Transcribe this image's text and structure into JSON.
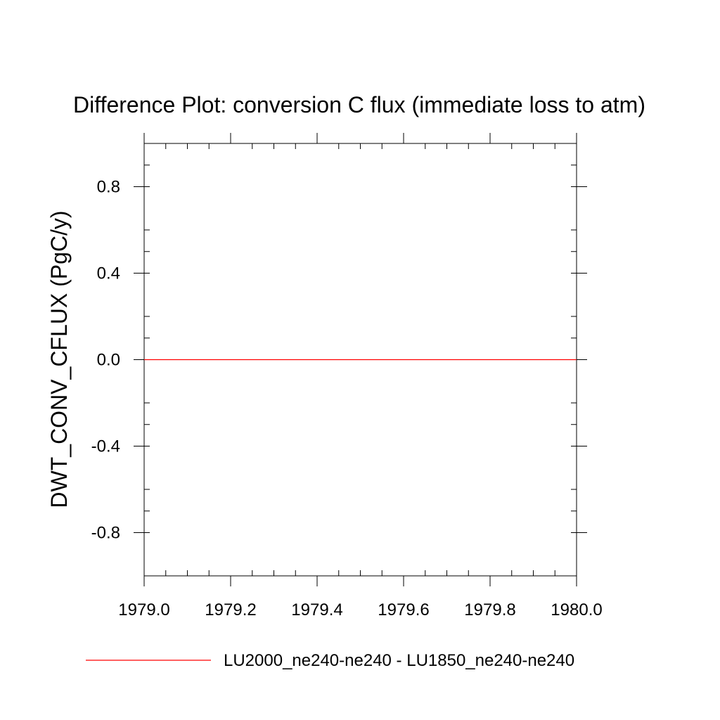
{
  "chart_data": {
    "type": "line",
    "title": "Difference Plot: conversion C flux (immediate loss to atm)",
    "xlabel": "",
    "ylabel": "DWT_CONV_CFLUX  (PgC/y)",
    "xlim": [
      1979.0,
      1980.0
    ],
    "ylim": [
      -1.0,
      1.0
    ],
    "x_ticks": [
      1979.0,
      1979.2,
      1979.4,
      1979.6,
      1979.8,
      1980.0
    ],
    "x_tick_labels": [
      "1979.0",
      "1979.2",
      "1979.4",
      "1979.6",
      "1979.8",
      "1980.0"
    ],
    "y_ticks": [
      -0.8,
      -0.4,
      0.0,
      0.4,
      0.8
    ],
    "y_tick_labels": [
      "-0.8",
      "-0.4",
      "0.0",
      "0.4",
      "0.8"
    ],
    "grid": false,
    "legend_position": "bottom",
    "series": [
      {
        "name": "LU2000_ne240-ne240 - LU1850_ne240-ne240",
        "color": "#ff0000",
        "x": [
          1979.0,
          1980.0
        ],
        "y": [
          0.0,
          0.0
        ]
      }
    ]
  }
}
